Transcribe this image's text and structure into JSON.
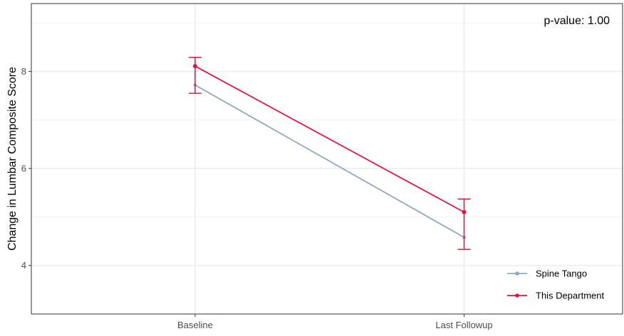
{
  "chart_data": {
    "type": "line",
    "title": "",
    "xlabel": "",
    "ylabel": "Change in Lumbar Composite Score",
    "categories": [
      "Baseline",
      "Last Followup"
    ],
    "ylim": [
      3,
      9.4
    ],
    "yticks": [
      4,
      6,
      8
    ],
    "grid": true,
    "legend_position": "bottom-right",
    "annotation": "p-value: 1.00",
    "series": [
      {
        "name": "Spine Tango",
        "color": "#91a9c0",
        "values": [
          7.72,
          4.58
        ],
        "error_bars": false
      },
      {
        "name": "This Department",
        "color": "#e3153a",
        "values": [
          8.11,
          5.1
        ],
        "error_lower": [
          7.55,
          4.33
        ],
        "error_upper": [
          8.29,
          5.37
        ],
        "error_bars": true
      }
    ]
  }
}
